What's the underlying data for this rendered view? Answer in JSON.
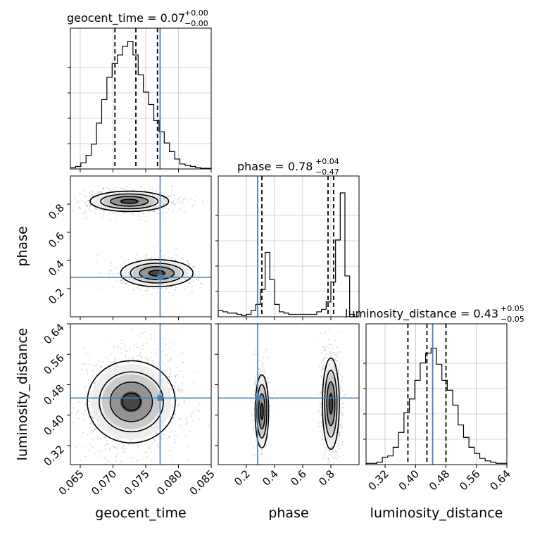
{
  "figure": {
    "title_geocent": "geocent_time = 0.07",
    "title_geocent_sup": "+0.00",
    "title_geocent_sub": "−0.00",
    "title_phase": "phase = 0.78",
    "title_phase_sup": "+0.04",
    "title_phase_sub": "−0.47",
    "title_lum": "luminosity_distance = 0.43",
    "title_lum_sup": "+0.05",
    "title_lum_sub": "−0.05",
    "xlabel_geocent": "geocent_time",
    "xlabel_phase": "phase",
    "xlabel_lum": "luminosity_distance",
    "ylabel_phase": "phase",
    "ylabel_lum": "luminosity_distance"
  },
  "colors": {
    "truth": "#4a7fb5",
    "hist": "#000000",
    "grid": "#b0b0b0",
    "scatter": "#9a9a9a"
  },
  "chart_data": {
    "type": "corner",
    "parameters": [
      "geocent_time",
      "phase",
      "luminosity_distance"
    ],
    "truths": {
      "geocent_time": 0.0772,
      "phase": 0.28,
      "luminosity_distance": 0.445
    },
    "ranges": {
      "geocent_time": [
        0.0635,
        0.085
      ],
      "phase": [
        0.0,
        1.0
      ],
      "luminosity_distance": [
        0.27,
        0.64
      ]
    },
    "ticks": {
      "geocent_time": [
        "0.065",
        "0.070",
        "0.075",
        "0.080",
        "0.085"
      ],
      "phase": [
        "0.2",
        "0.4",
        "0.6",
        "0.8"
      ],
      "luminosity_distance": [
        "0.32",
        "0.40",
        "0.48",
        "0.56",
        "0.64"
      ]
    },
    "quantiles": {
      "geocent_time": [
        0.0703,
        0.0735,
        0.0768
      ],
      "phase": [
        0.31,
        0.78,
        0.82
      ],
      "luminosity_distance": [
        0.38,
        0.43,
        0.48
      ]
    },
    "histograms": {
      "geocent_time": [
        0.01,
        0.02,
        0.05,
        0.11,
        0.2,
        0.37,
        0.56,
        0.74,
        0.85,
        0.92,
        0.99,
        1.03,
        0.92,
        0.76,
        0.62,
        0.52,
        0.39,
        0.3,
        0.21,
        0.14,
        0.08,
        0.04,
        0.03,
        0.02,
        0.01,
        0.005,
        0.005
      ],
      "phase": [
        0.05,
        0.04,
        0.03,
        0.03,
        0.02,
        0.01,
        0.02,
        0.05,
        0.1,
        0.22,
        0.52,
        0.3,
        0.1,
        0.04,
        0.03,
        0.02,
        0.02,
        0.02,
        0.02,
        0.02,
        0.02,
        0.04,
        0.06,
        0.12,
        0.28,
        0.62,
        1.0,
        0.33,
        0.02,
        0.0
      ],
      "luminosity_distance": [
        0.01,
        0.01,
        0.02,
        0.06,
        0.07,
        0.14,
        0.26,
        0.42,
        0.53,
        0.68,
        0.82,
        0.9,
        0.94,
        0.81,
        0.68,
        0.6,
        0.48,
        0.32,
        0.22,
        0.14,
        0.09,
        0.05,
        0.03,
        0.02,
        0.01,
        0.01
      ]
    },
    "scatter_modes": {
      "phase_vs_geocent_time": [
        {
          "x": 0.0725,
          "y": 0.82,
          "sx": 0.0025,
          "sy": 0.03,
          "w": 0.62
        },
        {
          "x": 0.0767,
          "y": 0.31,
          "sx": 0.0023,
          "sy": 0.04,
          "w": 0.38
        }
      ],
      "luminosity_distance_vs_geocent_time": [
        {
          "x": 0.0728,
          "y": 0.435,
          "sx": 0.0028,
          "sy": 0.045,
          "w": 1.0
        }
      ],
      "luminosity_distance_vs_phase": [
        {
          "x": 0.8,
          "y": 0.43,
          "sx": 0.025,
          "sy": 0.05,
          "w": 0.62
        },
        {
          "x": 0.31,
          "y": 0.41,
          "sx": 0.02,
          "sy": 0.04,
          "w": 0.38
        }
      ]
    }
  }
}
